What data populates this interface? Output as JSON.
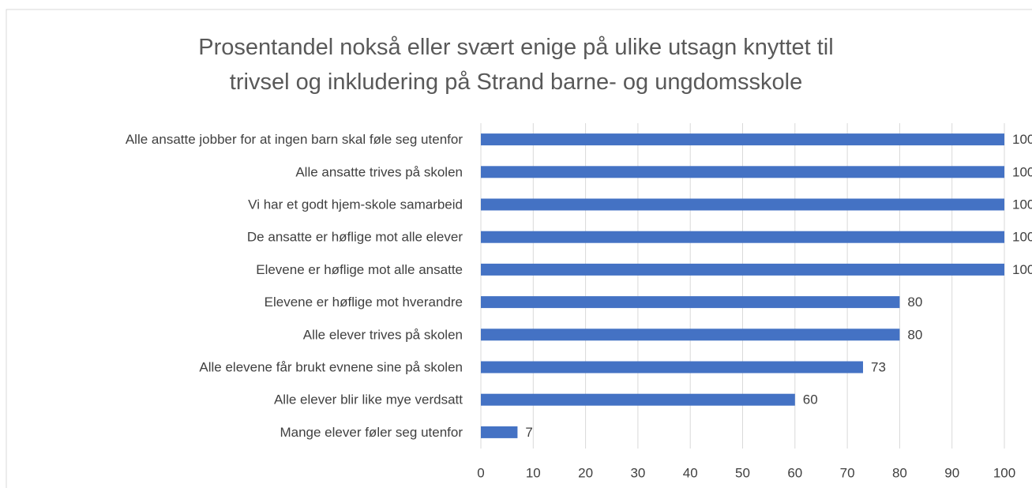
{
  "chart_data": {
    "type": "bar",
    "orientation": "horizontal",
    "title": "Prosentandel nokså eller svært enige på ulike utsagn knyttet til\ntrivsel og inkludering på Strand barne- og ungdomsskole",
    "categories": [
      "Alle ansatte jobber for at ingen barn skal føle seg utenfor",
      "Alle ansatte trives på skolen",
      "Vi har et godt hjem-skole samarbeid",
      "De ansatte er høflige mot alle elever",
      "Elevene er høflige mot alle ansatte",
      "Elevene er høflige mot hverandre",
      "Alle elever trives på skolen",
      "Alle elevene får brukt evnene sine på skolen",
      "Alle elever blir like mye verdsatt",
      "Mange elever føler seg utenfor"
    ],
    "values": [
      100,
      100,
      100,
      100,
      100,
      80,
      80,
      73,
      60,
      7
    ],
    "color": "#4472c4",
    "xlim": [
      0,
      100
    ],
    "xticks": [
      0,
      10,
      20,
      30,
      40,
      50,
      60,
      70,
      80,
      90,
      100
    ],
    "grid": true
  }
}
